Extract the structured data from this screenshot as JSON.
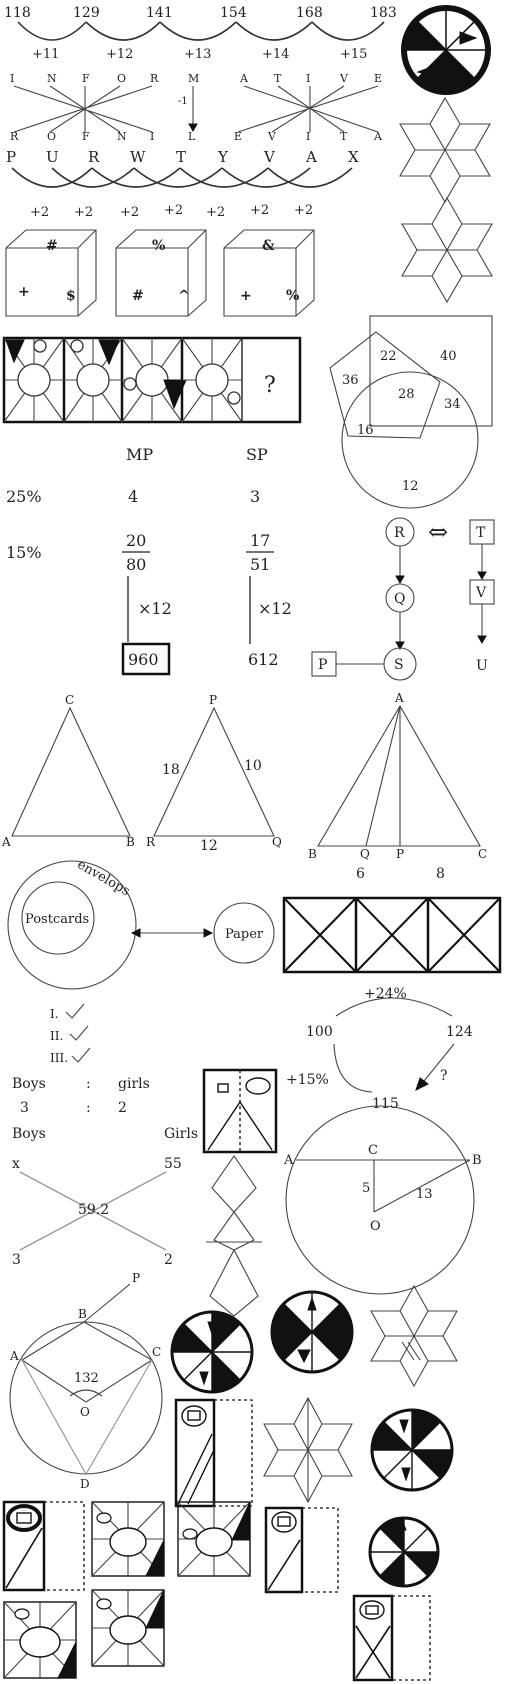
{
  "series_row": {
    "numbers": [
      "118",
      "129",
      "141",
      "154",
      "168",
      "183"
    ],
    "diffs": [
      "+11",
      "+12",
      "+13",
      "+14",
      "+15"
    ]
  },
  "words": {
    "top_left": [
      "I",
      "N",
      "F",
      "O",
      "R"
    ],
    "bottom_left": [
      "R",
      "O",
      "F",
      "N",
      "I"
    ],
    "mid_top": "M",
    "mid_bottom": "L",
    "mid_note": "-1",
    "top_right": [
      "A",
      "T",
      "I",
      "V",
      "E"
    ],
    "bottom_right": [
      "E",
      "V",
      "I",
      "T",
      "A"
    ]
  },
  "letters_row": {
    "letters": [
      "P",
      "U",
      "R",
      "W",
      "T",
      "Y",
      "V",
      "A",
      "X"
    ],
    "steps": [
      "+2",
      "+2",
      "+2",
      "+2",
      "+2",
      "+2",
      "+2"
    ]
  },
  "dice": [
    {
      "top": "#",
      "left": "+",
      "right": "$"
    },
    {
      "top": "%",
      "left": "#",
      "right": "^"
    },
    {
      "top": "&",
      "left": "+",
      "right": "%"
    }
  ],
  "figure_series": {
    "question": "?"
  },
  "venn": {
    "n22": "22",
    "n40": "40",
    "n36": "36",
    "n28": "28",
    "n34": "34",
    "n16": "16",
    "n12": "12"
  },
  "discount": {
    "head_mp": "MP",
    "head_sp": "SP",
    "row1": {
      "pct": "25%",
      "mp": "4",
      "sp": "3"
    },
    "row2": {
      "pct": "15%",
      "mp_num": "20",
      "mp_den": "80",
      "sp_num": "17",
      "sp_den": "51"
    },
    "mult_left": "×12",
    "mult_right": "×12",
    "result_mp": "960",
    "result_sp": "612"
  },
  "relations": {
    "r": "R",
    "t": "T",
    "q": "Q",
    "v": "V",
    "p": "P",
    "s": "S",
    "u": "U",
    "arrow": "⇔"
  },
  "triangles": {
    "t1": {
      "top": "C",
      "left": "A",
      "right": "B"
    },
    "t2": {
      "top": "P",
      "left": "R",
      "right": "Q",
      "side_left": "18",
      "side_right": "10",
      "base": "12"
    },
    "t3": {
      "top": "A",
      "b": "B",
      "q": "Q",
      "p": "P",
      "c": "C",
      "seg1": "6",
      "seg2": "8"
    }
  },
  "syllogism": {
    "inner": "Postcards",
    "ring": "envelops",
    "other": "Paper",
    "answers": [
      "I.",
      "II.",
      "III."
    ]
  },
  "percent_cycle": {
    "start": "100",
    "top": "+24%",
    "end": "124",
    "left": "+15%",
    "mid": "115",
    "q": "?"
  },
  "ratio": {
    "boys": "Boys",
    "girls": "girls",
    "colon": ":",
    "boys_val": "3",
    "girls_val": "2",
    "boys2": "Boys",
    "girls2": "Girls",
    "x": "x",
    "val55": "55",
    "center": "59.2",
    "b3": "3",
    "g2": "2"
  },
  "circle_chord": {
    "a": "A",
    "c": "C",
    "b": "B",
    "o": "O",
    "oc": "5",
    "ob": "13"
  },
  "cyclic_quad": {
    "p": "P",
    "b": "B",
    "a": "A",
    "c": "C",
    "o": "O",
    "d": "D",
    "angle": "132"
  }
}
